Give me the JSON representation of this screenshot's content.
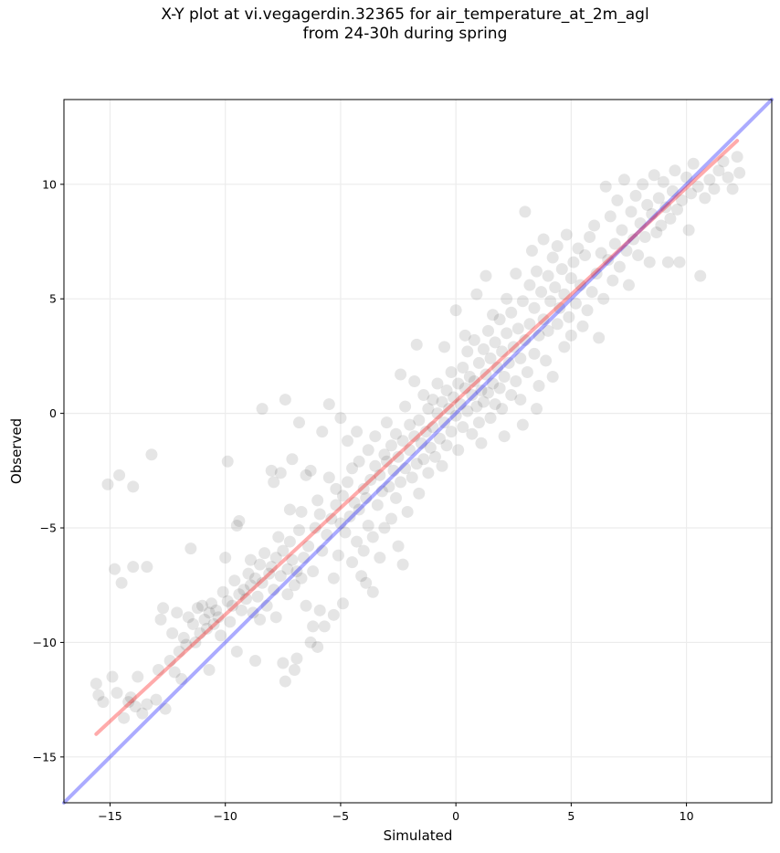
{
  "chart_data": {
    "type": "scatter",
    "title": [
      "X-Y plot at vi.vegagerdin.32365 for air_temperature_at_2m_agl",
      "from 24-30h during spring"
    ],
    "xlabel": "Simulated",
    "ylabel": "Observed",
    "xlim": [
      -17.0,
      13.7
    ],
    "ylim": [
      -17.0,
      13.7
    ],
    "xticks": [
      -15,
      -10,
      -5,
      0,
      5,
      10
    ],
    "yticks": [
      -15,
      -10,
      -5,
      0,
      5,
      10
    ],
    "tick_labels": [
      "−15",
      "−10",
      "−5",
      "0",
      "5",
      "10"
    ],
    "grid": true,
    "marker_color": "#000000",
    "marker_alpha": 0.1,
    "lines": [
      {
        "role": "identity",
        "color": "#0000ff",
        "x": [
          -17.0,
          13.7
        ],
        "y": [
          -17.0,
          13.7
        ]
      },
      {
        "role": "regression",
        "color": "#ff0000",
        "x": [
          -15.6,
          12.2
        ],
        "y": [
          -14.0,
          11.9
        ]
      }
    ],
    "points": [
      [
        -15.6,
        -11.8
      ],
      [
        -15.5,
        -12.3
      ],
      [
        -15.3,
        -12.6
      ],
      [
        -15.1,
        -3.1
      ],
      [
        -14.9,
        -11.5
      ],
      [
        -14.8,
        -6.8
      ],
      [
        -14.7,
        -12.2
      ],
      [
        -14.6,
        -2.7
      ],
      [
        -14.5,
        -7.4
      ],
      [
        -14.4,
        -13.3
      ],
      [
        -14.2,
        -12.6
      ],
      [
        -14.1,
        -12.4
      ],
      [
        -14.0,
        -6.7
      ],
      [
        -14.0,
        -3.2
      ],
      [
        -13.9,
        -12.8
      ],
      [
        -13.8,
        -11.5
      ],
      [
        -13.6,
        -13.1
      ],
      [
        -13.4,
        -12.7
      ],
      [
        -13.4,
        -6.7
      ],
      [
        -13.2,
        -1.8
      ],
      [
        -13.0,
        -12.5
      ],
      [
        -12.9,
        -11.2
      ],
      [
        -12.8,
        -9.0
      ],
      [
        -12.7,
        -8.5
      ],
      [
        -12.6,
        -12.9
      ],
      [
        -12.4,
        -10.8
      ],
      [
        -12.3,
        -9.6
      ],
      [
        -12.2,
        -11.3
      ],
      [
        -12.1,
        -8.7
      ],
      [
        -12.0,
        -10.4
      ],
      [
        -11.9,
        -11.6
      ],
      [
        -11.8,
        -9.8
      ],
      [
        -11.7,
        -10.1
      ],
      [
        -11.6,
        -8.9
      ],
      [
        -11.5,
        -5.9
      ],
      [
        -11.4,
        -9.2
      ],
      [
        -11.3,
        -10.0
      ],
      [
        -11.2,
        -8.5
      ],
      [
        -11.1,
        -9.6
      ],
      [
        -11.0,
        -8.4
      ],
      [
        -10.9,
        -9.0
      ],
      [
        -10.8,
        -9.4
      ],
      [
        -10.7,
        -8.7
      ],
      [
        -10.6,
        -8.3
      ],
      [
        -10.5,
        -9.2
      ],
      [
        -10.4,
        -8.6
      ],
      [
        -10.3,
        -8.9
      ],
      [
        -10.2,
        -9.7
      ],
      [
        -10.1,
        -7.8
      ],
      [
        -10.0,
        -6.3
      ],
      [
        -9.9,
        -8.2
      ],
      [
        -9.9,
        -2.1
      ],
      [
        -9.8,
        -9.1
      ],
      [
        -9.7,
        -8.4
      ],
      [
        -9.6,
        -7.3
      ],
      [
        -9.5,
        -4.9
      ],
      [
        -9.5,
        -10.4
      ],
      [
        -9.4,
        -7.9
      ],
      [
        -9.4,
        -4.7
      ],
      [
        -9.3,
        -8.6
      ],
      [
        -9.2,
        -7.7
      ],
      [
        -9.1,
        -8.1
      ],
      [
        -9.0,
        -7.0
      ],
      [
        -8.9,
        -7.5
      ],
      [
        -8.9,
        -6.4
      ],
      [
        -8.8,
        -8.7
      ],
      [
        -8.7,
        -7.2
      ],
      [
        -8.6,
        -8.0
      ],
      [
        -8.5,
        -6.6
      ],
      [
        -8.5,
        -9.0
      ],
      [
        -8.4,
        -7.4
      ],
      [
        -8.4,
        0.2
      ],
      [
        -8.3,
        -6.1
      ],
      [
        -8.2,
        -8.4
      ],
      [
        -8.1,
        -7.0
      ],
      [
        -8.0,
        -6.7
      ],
      [
        -8.0,
        -2.5
      ],
      [
        -7.9,
        -7.7
      ],
      [
        -7.9,
        -3.0
      ],
      [
        -7.8,
        -6.3
      ],
      [
        -7.8,
        -8.9
      ],
      [
        -7.7,
        -5.4
      ],
      [
        -7.6,
        -7.1
      ],
      [
        -7.6,
        -2.6
      ],
      [
        -7.5,
        -10.9
      ],
      [
        -7.5,
        -6.0
      ],
      [
        -7.4,
        -11.7
      ],
      [
        -7.4,
        0.6
      ],
      [
        -7.3,
        -6.8
      ],
      [
        -7.3,
        -7.9
      ],
      [
        -7.2,
        -5.6
      ],
      [
        -7.2,
        -4.2
      ],
      [
        -7.1,
        -6.4
      ],
      [
        -7.1,
        -2.0
      ],
      [
        -7.0,
        -7.5
      ],
      [
        -7.0,
        -11.2
      ],
      [
        -6.9,
        -6.9
      ],
      [
        -6.9,
        -10.7
      ],
      [
        -6.8,
        -5.1
      ],
      [
        -6.8,
        -0.4
      ],
      [
        -6.7,
        -7.2
      ],
      [
        -6.7,
        -4.3
      ],
      [
        -6.6,
        -6.3
      ],
      [
        -6.5,
        -8.4
      ],
      [
        -6.5,
        -2.7
      ],
      [
        -6.4,
        -5.8
      ],
      [
        -6.3,
        -2.5
      ],
      [
        -6.3,
        -10.0
      ],
      [
        -6.2,
        -6.9
      ],
      [
        -6.1,
        -5.0
      ],
      [
        -6.0,
        -10.2
      ],
      [
        -6.0,
        -3.8
      ],
      [
        -5.9,
        -4.4
      ],
      [
        -5.9,
        -8.6
      ],
      [
        -5.8,
        -6.0
      ],
      [
        -5.8,
        -0.8
      ],
      [
        -5.7,
        -9.3
      ],
      [
        -5.6,
        -5.3
      ],
      [
        -5.5,
        -2.8
      ],
      [
        -5.5,
        0.4
      ],
      [
        -5.4,
        -4.6
      ],
      [
        -5.3,
        -7.2
      ],
      [
        -5.3,
        -8.8
      ],
      [
        -5.2,
        -4.0
      ],
      [
        -5.2,
        -3.3
      ],
      [
        -5.1,
        -6.2
      ],
      [
        -5.0,
        -4.8
      ],
      [
        -5.0,
        -0.2
      ],
      [
        -4.9,
        -3.6
      ],
      [
        -4.9,
        -8.3
      ],
      [
        -4.8,
        -5.2
      ],
      [
        -4.7,
        -3.0
      ],
      [
        -4.7,
        -1.2
      ],
      [
        -4.6,
        -4.5
      ],
      [
        -4.5,
        -6.5
      ],
      [
        -4.5,
        -2.4
      ],
      [
        -4.4,
        -3.9
      ],
      [
        -4.3,
        -5.6
      ],
      [
        -4.3,
        -0.8
      ],
      [
        -4.2,
        -4.2
      ],
      [
        -4.2,
        -2.1
      ],
      [
        -4.1,
        -7.1
      ],
      [
        -4.0,
        -3.3
      ],
      [
        -4.0,
        -6.0
      ],
      [
        -3.9,
        -3.7
      ],
      [
        -3.8,
        -4.9
      ],
      [
        -3.8,
        -1.6
      ],
      [
        -3.7,
        -2.9
      ],
      [
        -3.6,
        -5.4
      ],
      [
        -3.6,
        -7.8
      ],
      [
        -3.5,
        -2.3
      ],
      [
        -3.5,
        -1.0
      ],
      [
        -3.4,
        -4.0
      ],
      [
        -3.3,
        -2.7
      ],
      [
        -3.3,
        -6.3
      ],
      [
        -3.2,
        -3.4
      ],
      [
        -3.1,
        -1.8
      ],
      [
        -3.1,
        -5.0
      ],
      [
        -3.0,
        -2.1
      ],
      [
        -3.0,
        -0.4
      ],
      [
        -2.9,
        -3.2
      ],
      [
        -2.8,
        -4.6
      ],
      [
        -2.8,
        -1.4
      ],
      [
        -2.7,
        -2.5
      ],
      [
        -2.6,
        -3.7
      ],
      [
        -2.6,
        -0.9
      ],
      [
        -2.5,
        -1.9
      ],
      [
        -2.5,
        -5.8
      ],
      [
        -2.4,
        1.7
      ],
      [
        -2.4,
        -3.0
      ],
      [
        -2.3,
        -1.2
      ],
      [
        -2.2,
        -2.4
      ],
      [
        -2.2,
        0.3
      ],
      [
        -2.1,
        -4.3
      ],
      [
        -2.0,
        -1.6
      ],
      [
        -2.0,
        -0.5
      ],
      [
        -1.9,
        -2.8
      ],
      [
        -1.8,
        -1.0
      ],
      [
        -1.8,
        1.4
      ],
      [
        -1.7,
        -2.2
      ],
      [
        -1.6,
        -0.3
      ],
      [
        -1.6,
        -3.5
      ],
      [
        -1.5,
        -1.3
      ],
      [
        -1.4,
        0.8
      ],
      [
        -1.4,
        -2.0
      ],
      [
        -1.3,
        -0.8
      ],
      [
        -1.2,
        0.2
      ],
      [
        -1.2,
        -2.6
      ],
      [
        -1.1,
        -1.5
      ],
      [
        -1.0,
        0.6
      ],
      [
        -1.0,
        -0.6
      ],
      [
        -0.9,
        -1.9
      ],
      [
        -0.8,
        0.0
      ],
      [
        -0.8,
        1.3
      ],
      [
        -0.7,
        -1.1
      ],
      [
        -0.6,
        0.5
      ],
      [
        -0.6,
        -2.3
      ],
      [
        -0.5,
        -0.4
      ],
      [
        -0.4,
        1.0
      ],
      [
        -0.4,
        -1.4
      ],
      [
        -0.3,
        0.2
      ],
      [
        -0.2,
        1.8
      ],
      [
        -0.2,
        -0.8
      ],
      [
        -0.1,
        0.7
      ],
      [
        0.0,
        -0.1
      ],
      [
        0.0,
        4.5
      ],
      [
        0.1,
        1.3
      ],
      [
        0.1,
        -1.6
      ],
      [
        0.2,
        0.4
      ],
      [
        0.3,
        2.0
      ],
      [
        0.3,
        -0.6
      ],
      [
        0.4,
        1.1
      ],
      [
        0.5,
        0.1
      ],
      [
        0.5,
        2.7
      ],
      [
        0.6,
        1.6
      ],
      [
        0.7,
        -0.9
      ],
      [
        0.7,
        0.8
      ],
      [
        0.8,
        3.2
      ],
      [
        0.8,
        1.4
      ],
      [
        0.9,
        0.3
      ],
      [
        1.0,
        2.2
      ],
      [
        1.0,
        -0.4
      ],
      [
        1.1,
        1.0
      ],
      [
        1.2,
        2.8
      ],
      [
        1.2,
        0.5
      ],
      [
        1.3,
        1.7
      ],
      [
        1.4,
        3.6
      ],
      [
        1.4,
        0.9
      ],
      [
        1.5,
        2.4
      ],
      [
        1.5,
        -0.2
      ],
      [
        1.6,
        1.3
      ],
      [
        1.7,
        3.1
      ],
      [
        1.7,
        0.4
      ],
      [
        1.8,
        2.0
      ],
      [
        1.9,
        4.1
      ],
      [
        1.9,
        1.1
      ],
      [
        2.0,
        2.7
      ],
      [
        2.0,
        0.2
      ],
      [
        2.1,
        1.6
      ],
      [
        2.2,
        3.5
      ],
      [
        2.2,
        5.0
      ],
      [
        2.3,
        2.2
      ],
      [
        2.4,
        0.8
      ],
      [
        2.4,
        4.4
      ],
      [
        2.5,
        2.9
      ],
      [
        2.6,
        1.4
      ],
      [
        2.6,
        6.1
      ],
      [
        2.7,
        3.7
      ],
      [
        2.8,
        2.4
      ],
      [
        2.8,
        0.6
      ],
      [
        2.9,
        4.9
      ],
      [
        3.0,
        3.2
      ],
      [
        3.0,
        8.8
      ],
      [
        3.1,
        1.8
      ],
      [
        3.2,
        5.6
      ],
      [
        3.2,
        3.9
      ],
      [
        3.3,
        7.1
      ],
      [
        3.4,
        2.6
      ],
      [
        3.4,
        4.6
      ],
      [
        3.5,
        6.2
      ],
      [
        3.6,
        3.4
      ],
      [
        3.6,
        1.2
      ],
      [
        3.7,
        5.3
      ],
      [
        3.8,
        7.6
      ],
      [
        3.8,
        4.1
      ],
      [
        3.9,
        2.3
      ],
      [
        4.0,
        6.0
      ],
      [
        4.0,
        3.6
      ],
      [
        4.1,
        4.9
      ],
      [
        4.2,
        6.8
      ],
      [
        4.2,
        1.6
      ],
      [
        4.3,
        5.5
      ],
      [
        4.4,
        3.9
      ],
      [
        4.4,
        7.3
      ],
      [
        4.5,
        4.6
      ],
      [
        4.6,
        6.3
      ],
      [
        4.7,
        2.9
      ],
      [
        4.7,
        5.2
      ],
      [
        4.8,
        7.8
      ],
      [
        4.9,
        4.2
      ],
      [
        5.0,
        5.9
      ],
      [
        5.0,
        3.4
      ],
      [
        5.1,
        6.6
      ],
      [
        5.2,
        4.8
      ],
      [
        5.3,
        7.2
      ],
      [
        5.4,
        5.6
      ],
      [
        5.5,
        3.8
      ],
      [
        5.6,
        6.9
      ],
      [
        5.7,
        4.5
      ],
      [
        5.8,
        7.7
      ],
      [
        5.9,
        5.3
      ],
      [
        6.0,
        8.2
      ],
      [
        6.1,
        6.1
      ],
      [
        6.2,
        3.3
      ],
      [
        6.3,
        7.0
      ],
      [
        6.4,
        5.0
      ],
      [
        6.5,
        9.9
      ],
      [
        6.6,
        6.7
      ],
      [
        6.7,
        8.6
      ],
      [
        6.8,
        5.8
      ],
      [
        6.9,
        7.4
      ],
      [
        7.0,
        9.3
      ],
      [
        7.1,
        6.4
      ],
      [
        7.2,
        8.0
      ],
      [
        7.3,
        10.2
      ],
      [
        7.4,
        7.1
      ],
      [
        7.5,
        5.6
      ],
      [
        7.6,
        8.8
      ],
      [
        7.7,
        7.6
      ],
      [
        7.8,
        9.5
      ],
      [
        7.9,
        6.9
      ],
      [
        8.0,
        8.3
      ],
      [
        8.1,
        10.0
      ],
      [
        8.2,
        7.7
      ],
      [
        8.3,
        9.1
      ],
      [
        8.4,
        6.6
      ],
      [
        8.5,
        8.7
      ],
      [
        8.6,
        10.4
      ],
      [
        8.7,
        7.9
      ],
      [
        8.8,
        9.4
      ],
      [
        8.9,
        8.2
      ],
      [
        9.0,
        10.1
      ],
      [
        9.1,
        9.0
      ],
      [
        9.2,
        6.6
      ],
      [
        9.3,
        8.5
      ],
      [
        9.4,
        9.7
      ],
      [
        9.5,
        10.6
      ],
      [
        9.6,
        8.9
      ],
      [
        9.7,
        6.6
      ],
      [
        9.8,
        9.3
      ],
      [
        10.0,
        10.3
      ],
      [
        10.1,
        8.0
      ],
      [
        10.2,
        9.6
      ],
      [
        10.3,
        10.9
      ],
      [
        10.5,
        9.9
      ],
      [
        10.6,
        6.0
      ],
      [
        10.8,
        9.4
      ],
      [
        11.0,
        10.2
      ],
      [
        11.2,
        9.8
      ],
      [
        11.4,
        10.6
      ],
      [
        11.6,
        11.0
      ],
      [
        11.8,
        10.3
      ],
      [
        12.0,
        9.8
      ],
      [
        12.2,
        11.2
      ],
      [
        12.3,
        10.5
      ],
      [
        0.4,
        3.4
      ],
      [
        1.1,
        -1.3
      ],
      [
        1.6,
        4.3
      ],
      [
        2.9,
        -0.5
      ],
      [
        -0.5,
        2.9
      ],
      [
        0.9,
        5.2
      ],
      [
        3.5,
        0.2
      ],
      [
        -1.7,
        3.0
      ],
      [
        1.3,
        6.0
      ],
      [
        2.1,
        -1.0
      ],
      [
        -3.9,
        -7.4
      ],
      [
        -2.3,
        -6.6
      ],
      [
        -6.2,
        -9.3
      ],
      [
        -8.7,
        -10.8
      ],
      [
        -10.7,
        -11.2
      ]
    ]
  }
}
